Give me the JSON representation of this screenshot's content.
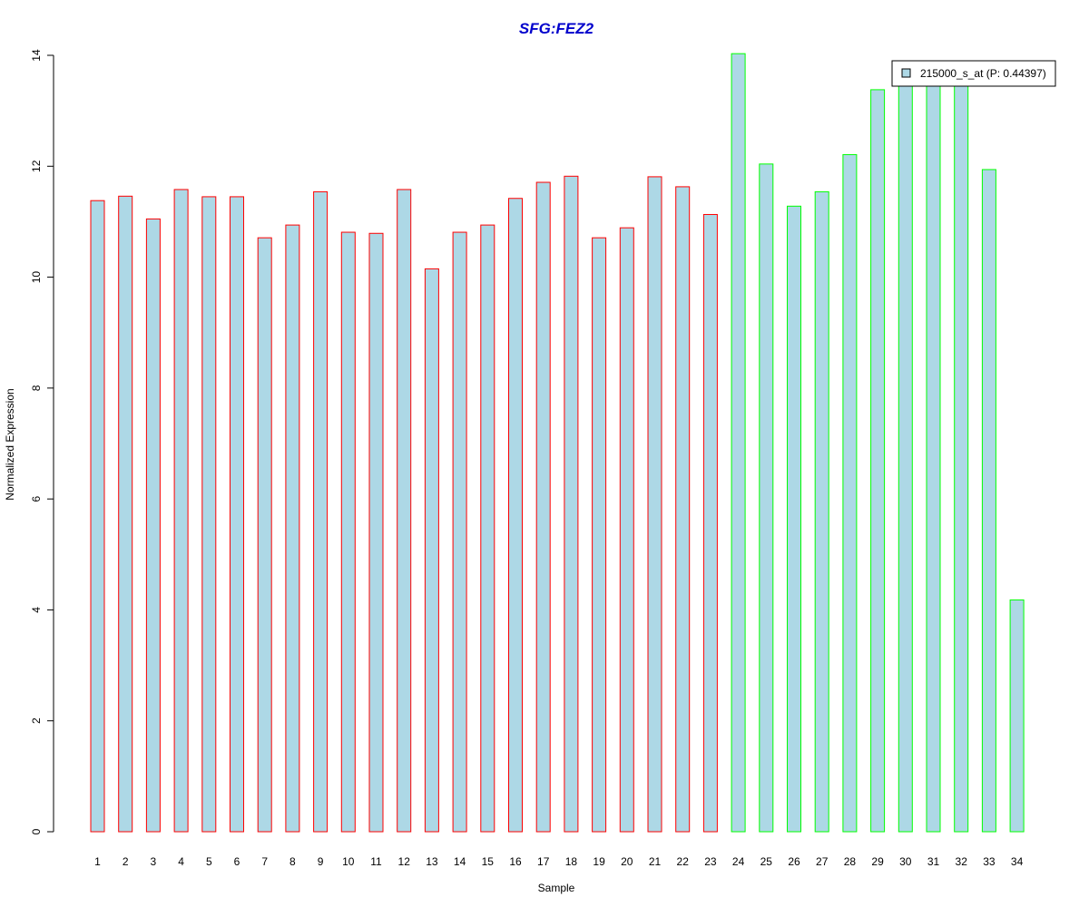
{
  "chart_data": {
    "type": "bar",
    "title": "SFG:FEZ2",
    "xlabel": "Sample",
    "ylabel": "Normalized Expression",
    "ylim": [
      0,
      14
    ],
    "yticks": [
      0,
      2,
      4,
      6,
      8,
      10,
      12,
      14
    ],
    "categories": [
      "1",
      "2",
      "3",
      "4",
      "5",
      "6",
      "7",
      "8",
      "9",
      "10",
      "11",
      "12",
      "13",
      "14",
      "15",
      "16",
      "17",
      "18",
      "19",
      "20",
      "21",
      "22",
      "23",
      "24",
      "25",
      "26",
      "27",
      "28",
      "29",
      "30",
      "31",
      "32",
      "33",
      "34"
    ],
    "series": [
      {
        "name": "215000_s_at (P: 0.44397)",
        "values": [
          11.38,
          11.46,
          11.05,
          11.58,
          11.45,
          11.45,
          10.71,
          10.94,
          11.54,
          10.81,
          10.79,
          11.58,
          10.15,
          10.81,
          10.94,
          11.42,
          11.71,
          11.82,
          10.71,
          10.89,
          11.81,
          11.63,
          11.13,
          14.03,
          12.04,
          11.28,
          11.54,
          12.21,
          13.38,
          13.5,
          13.5,
          13.5,
          11.94,
          4.18
        ]
      }
    ],
    "group_outline": [
      "red",
      "red",
      "red",
      "red",
      "red",
      "red",
      "red",
      "red",
      "red",
      "red",
      "red",
      "red",
      "red",
      "red",
      "red",
      "red",
      "red",
      "red",
      "red",
      "red",
      "red",
      "red",
      "red",
      "green",
      "green",
      "green",
      "green",
      "green",
      "green",
      "green",
      "green",
      "green",
      "green",
      "green"
    ],
    "colors": {
      "title": "#0000cc",
      "bar_fill": "#add8e6",
      "outline_red": "#ff0000",
      "outline_green": "#00ff00",
      "axis": "#000000"
    },
    "legend": {
      "placement": "top-right"
    },
    "grid": false
  }
}
